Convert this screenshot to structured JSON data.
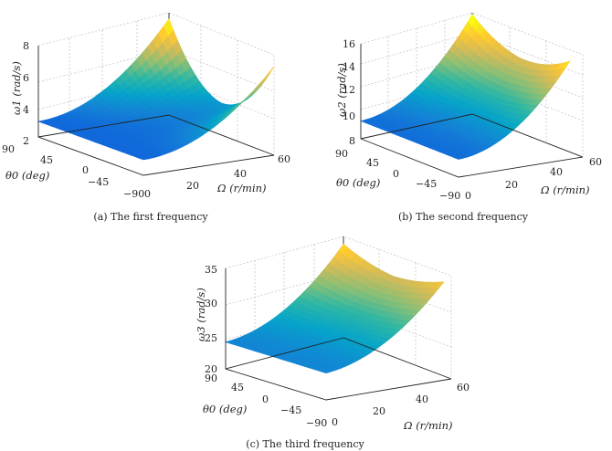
{
  "chart_data": [
    {
      "type": "surface",
      "caption": "(a) The first frequency",
      "zlabel": "ω1 (rad/s)",
      "xlabel": "Ω (r/min)",
      "ylabel": "θ0 (deg)",
      "x_ticks": [
        "0",
        "20",
        "40",
        "60"
      ],
      "y_ticks": [
        "90",
        "45",
        "0",
        "−45",
        "−90"
      ],
      "z_ticks": [
        "2",
        "4",
        "6",
        "8"
      ],
      "x_range": [
        0,
        60
      ],
      "y_range": [
        -90,
        90
      ],
      "zlim": [
        2,
        8
      ],
      "colormap": "parula",
      "surface_corners": {
        "x0_y90": 3.0,
        "x0_ym90": 3.0,
        "x60_y90": 8.2,
        "x60_ym90": 6.3
      },
      "surface_shape": "low near Ω=0 (~3), rises with Ω; minimum valley near θ0=0 at high Ω (~4), peaks toward θ0=±90 at Ω=60"
    },
    {
      "type": "surface",
      "caption": "(b) The second frequency",
      "zlabel": "ω2 (rad/s)",
      "xlabel": "Ω (r/min)",
      "ylabel": "θ0 (deg)",
      "x_ticks": [
        "0",
        "20",
        "40",
        "60"
      ],
      "y_ticks": [
        "90",
        "45",
        "0",
        "−45",
        "−90"
      ],
      "z_ticks": [
        "8",
        "10",
        "12",
        "14",
        "16"
      ],
      "x_range": [
        0,
        60
      ],
      "y_range": [
        -90,
        90
      ],
      "zlim": [
        8,
        16
      ],
      "colormap": "parula",
      "surface_corners": {
        "x0_y90": 9.5,
        "x0_ym90": 9.4,
        "x60_y90": 16.5,
        "x60_ym90": 14.7
      },
      "surface_shape": "rises smoothly with Ω, slight sag near θ0=0"
    },
    {
      "type": "surface",
      "caption": "(c) The third frequency",
      "zlabel": "ω3 (rad/s)",
      "xlabel": "Ω (r/min)",
      "ylabel": "θ0 (deg)",
      "x_ticks": [
        "0",
        "20",
        "40",
        "60"
      ],
      "y_ticks": [
        "90",
        "45",
        "0",
        "−45",
        "−90"
      ],
      "z_ticks": [
        "20",
        "25",
        "30",
        "35"
      ],
      "x_range": [
        0,
        60
      ],
      "y_range": [
        -90,
        90
      ],
      "zlim": [
        20,
        35
      ],
      "colormap": "parula",
      "surface_corners": {
        "x0_y90": 24.0,
        "x0_ym90": 23.8,
        "x60_y90": 34.0,
        "x60_ym90": 31.0
      },
      "surface_shape": "rises smoothly with Ω, slight sag near θ0=0"
    }
  ]
}
